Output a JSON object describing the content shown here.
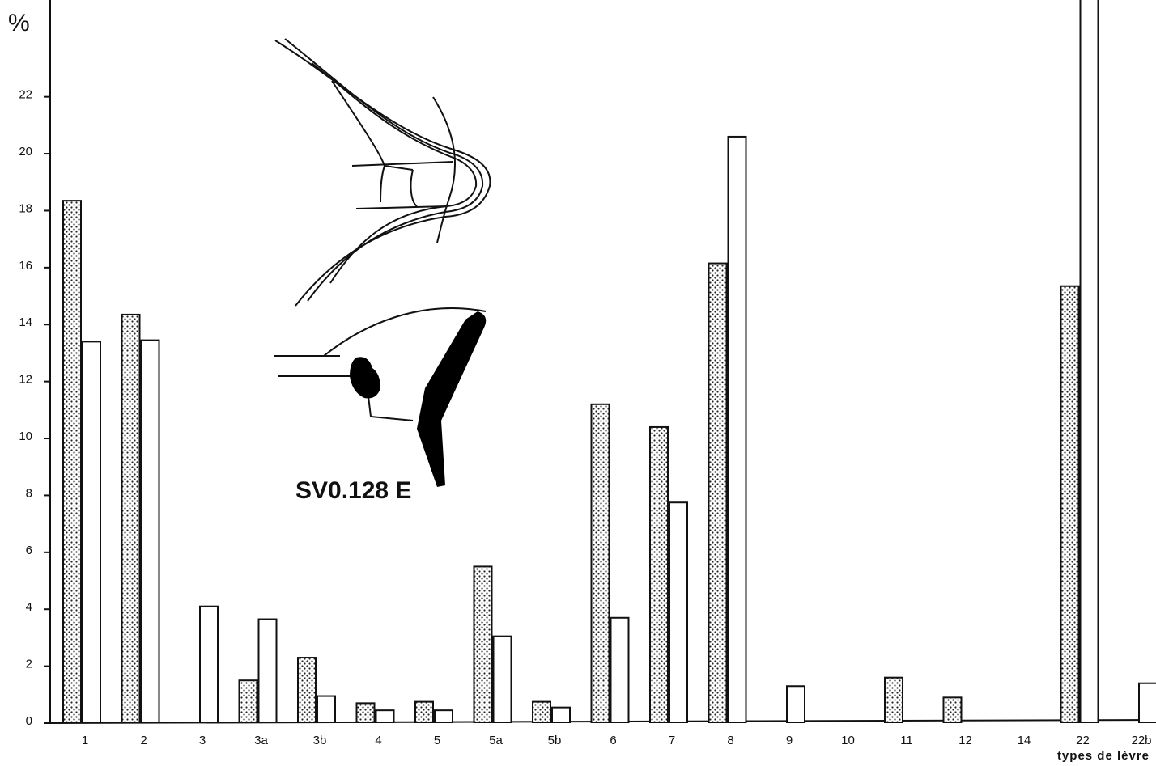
{
  "chart_data": {
    "type": "bar",
    "y_label": "%",
    "x_label": "types de lèvre",
    "annotation": "SV0.128 E",
    "categories": [
      "1",
      "2",
      "3",
      "3a",
      "3b",
      "4",
      "5",
      "5a",
      "5b",
      "6",
      "7",
      "8",
      "9",
      "10",
      "11",
      "12",
      "14",
      "22",
      "22b"
    ],
    "series": [
      {
        "fill": "stipple",
        "color": "#111111",
        "values": [
          18.35,
          14.35,
          null,
          1.5,
          2.3,
          0.7,
          0.75,
          5.5,
          0.75,
          11.2,
          10.4,
          16.15,
          null,
          null,
          1.6,
          0.9,
          null,
          15.35,
          null
        ]
      },
      {
        "fill": "plain",
        "color": "#111111",
        "values": [
          13.4,
          13.45,
          4.1,
          3.65,
          0.95,
          0.45,
          0.45,
          3.05,
          0.55,
          3.7,
          7.75,
          20.6,
          1.3,
          null,
          null,
          null,
          null,
          26,
          1.4
        ]
      }
    ],
    "ylim": [
      0,
      25.4
    ],
    "yticks": [
      0,
      2,
      4,
      6,
      8,
      10,
      12,
      14,
      16,
      18,
      20,
      22
    ]
  }
}
